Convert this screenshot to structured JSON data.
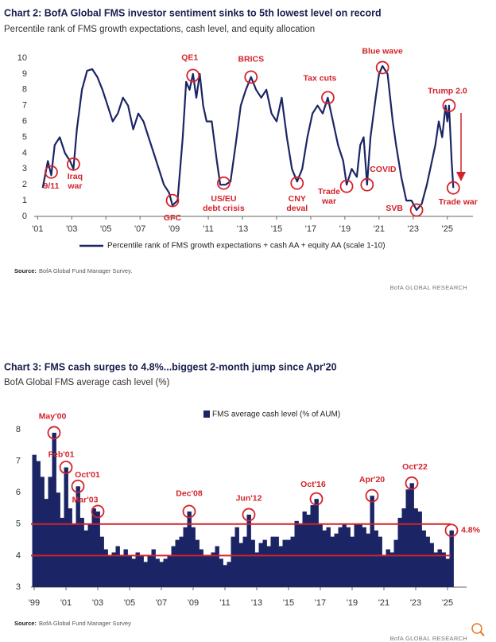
{
  "chart_data": [
    {
      "type": "line",
      "title": "Chart 2: BofA Global FMS investor sentiment sinks to 5th lowest level on record",
      "subtitle": "Percentile rank of FMS growth expectations, cash level, and equity allocation",
      "x": [
        2001.3,
        2001.6,
        2001.8,
        2002.0,
        2002.3,
        2002.6,
        2002.9,
        2003.1,
        2003.3,
        2003.6,
        2003.9,
        2004.2,
        2004.5,
        2004.8,
        2005.1,
        2005.4,
        2005.7,
        2006.0,
        2006.3,
        2006.6,
        2006.9,
        2007.2,
        2007.5,
        2007.8,
        2008.1,
        2008.4,
        2008.7,
        2008.9,
        2009.2,
        2009.5,
        2009.7,
        2009.9,
        2010.1,
        2010.3,
        2010.5,
        2010.7,
        2010.9,
        2011.2,
        2011.5,
        2011.7,
        2012.0,
        2012.3,
        2012.6,
        2012.9,
        2013.2,
        2013.5,
        2013.8,
        2014.1,
        2014.4,
        2014.7,
        2015.0,
        2015.3,
        2015.6,
        2015.9,
        2016.2,
        2016.5,
        2016.8,
        2017.1,
        2017.4,
        2017.7,
        2018.0,
        2018.3,
        2018.6,
        2018.9,
        2019.1,
        2019.4,
        2019.7,
        2019.9,
        2020.1,
        2020.3,
        2020.5,
        2020.8,
        2021.0,
        2021.2,
        2021.5,
        2021.8,
        2022.0,
        2022.3,
        2022.6,
        2022.9,
        2023.2,
        2023.5,
        2023.8,
        2024.0,
        2024.3,
        2024.5,
        2024.7,
        2024.9,
        2025.0,
        2025.1,
        2025.25,
        2025.35
      ],
      "series": [
        {
          "name": "Percentile rank of FMS growth expectations + cash AA + equity AA (scale 1-10)",
          "color": "#1b2566",
          "values": [
            1.8,
            3.5,
            2.6,
            4.5,
            5.0,
            4.0,
            3.5,
            3.0,
            5.5,
            8.0,
            9.2,
            9.3,
            8.8,
            8.0,
            7.0,
            6.0,
            6.5,
            7.5,
            7.0,
            5.5,
            6.5,
            6.0,
            5.0,
            4.0,
            3.0,
            2.0,
            1.5,
            0.7,
            1.0,
            5.0,
            8.5,
            8.0,
            9.0,
            7.5,
            9.0,
            7.0,
            6.0,
            6.0,
            3.5,
            2.0,
            2.0,
            2.2,
            4.5,
            7.0,
            8.0,
            8.8,
            8.0,
            7.5,
            8.0,
            6.5,
            6.0,
            7.5,
            5.0,
            3.0,
            2.2,
            3.0,
            5.0,
            6.5,
            7.0,
            6.5,
            7.5,
            6.0,
            4.5,
            3.5,
            2.0,
            3.0,
            2.5,
            4.5,
            5.0,
            2.0,
            5.0,
            7.5,
            9.0,
            9.5,
            9.0,
            6.0,
            4.5,
            2.5,
            1.0,
            1.0,
            0.4,
            0.8,
            2.0,
            3.0,
            4.5,
            6.0,
            5.0,
            7.0,
            6.0,
            7.0,
            3.5,
            1.8
          ]
        }
      ],
      "xlim": [
        2000.8,
        2026.5
      ],
      "xticks": [
        {
          "value": 2001,
          "label": "'01"
        },
        {
          "value": 2003,
          "label": "'03"
        },
        {
          "value": 2005,
          "label": "'05"
        },
        {
          "value": 2007,
          "label": "'07"
        },
        {
          "value": 2009,
          "label": "'09"
        },
        {
          "value": 2011,
          "label": "'11"
        },
        {
          "value": 2013,
          "label": "'13"
        },
        {
          "value": 2015,
          "label": "'15"
        },
        {
          "value": 2017,
          "label": "'17"
        },
        {
          "value": 2019,
          "label": "'19"
        },
        {
          "value": 2021,
          "label": "'21"
        },
        {
          "value": 2023,
          "label": "'23"
        },
        {
          "value": 2025,
          "label": "'25"
        }
      ],
      "ylim": [
        0,
        10
      ],
      "yticks": [
        0,
        1,
        2,
        3,
        4,
        5,
        6,
        7,
        8,
        9,
        10
      ],
      "annotation_color": "#d3232a",
      "annotations": [
        {
          "label": [
            "9/11"
          ],
          "x": 2001.8,
          "y": 2.8
        },
        {
          "label": [
            "Iraq",
            "war"
          ],
          "x": 2003.1,
          "y": 3.3
        },
        {
          "label": [
            "GFC"
          ],
          "x": 2008.9,
          "y": 1.0
        },
        {
          "label": [
            "QE1"
          ],
          "x": 2010.1,
          "y": 8.9
        },
        {
          "label": [
            "US/EU",
            "debt crisis"
          ],
          "x": 2011.9,
          "y": 2.1
        },
        {
          "label": [
            "BRICS"
          ],
          "x": 2013.5,
          "y": 8.8
        },
        {
          "label": [
            "CNY",
            "deval"
          ],
          "x": 2016.2,
          "y": 2.1
        },
        {
          "label": [
            "Tax cuts"
          ],
          "x": 2018.0,
          "y": 7.5
        },
        {
          "label": [
            "Trade",
            "war"
          ],
          "x": 2019.1,
          "y": 1.9
        },
        {
          "label": [
            "COVID"
          ],
          "x": 2020.3,
          "y": 2.0
        },
        {
          "label": [
            "Blue wave"
          ],
          "x": 2021.2,
          "y": 9.4
        },
        {
          "label": [
            "SVB"
          ],
          "x": 2023.2,
          "y": 0.4
        },
        {
          "label": [
            "Trump 2.0"
          ],
          "x": 2025.1,
          "y": 7.0
        },
        {
          "label": [
            "Trade war"
          ],
          "x": 2025.35,
          "y": 1.8
        }
      ],
      "source_label": "Source:",
      "source": "BofA Global Fund Manager Survey.",
      "brand": "BofA GLOBAL RESEARCH"
    },
    {
      "type": "bar",
      "title": "Chart 3: FMS cash surges to 4.8%...biggest 2-month jump since Apr'20",
      "subtitle": "BofA Global FMS average cash level (%)",
      "x": [
        1999.0,
        1999.25,
        1999.5,
        1999.75,
        2000.0,
        2000.25,
        2000.5,
        2000.75,
        2001.0,
        2001.25,
        2001.5,
        2001.75,
        2002.0,
        2002.25,
        2002.5,
        2002.75,
        2003.0,
        2003.25,
        2003.5,
        2003.75,
        2004.0,
        2004.25,
        2004.5,
        2004.75,
        2005.0,
        2005.25,
        2005.5,
        2005.75,
        2006.0,
        2006.25,
        2006.5,
        2006.75,
        2007.0,
        2007.25,
        2007.5,
        2007.75,
        2008.0,
        2008.25,
        2008.5,
        2008.75,
        2009.0,
        2009.25,
        2009.5,
        2009.75,
        2010.0,
        2010.25,
        2010.5,
        2010.75,
        2011.0,
        2011.25,
        2011.5,
        2011.75,
        2012.0,
        2012.25,
        2012.5,
        2012.75,
        2013.0,
        2013.25,
        2013.5,
        2013.75,
        2014.0,
        2014.25,
        2014.5,
        2014.75,
        2015.0,
        2015.25,
        2015.5,
        2015.75,
        2016.0,
        2016.25,
        2016.5,
        2016.75,
        2017.0,
        2017.25,
        2017.5,
        2017.75,
        2018.0,
        2018.25,
        2018.5,
        2018.75,
        2019.0,
        2019.25,
        2019.5,
        2019.75,
        2020.0,
        2020.25,
        2020.5,
        2020.75,
        2021.0,
        2021.25,
        2021.5,
        2021.75,
        2022.0,
        2022.25,
        2022.5,
        2022.75,
        2023.0,
        2023.25,
        2023.5,
        2023.75,
        2024.0,
        2024.25,
        2024.5,
        2024.75,
        2025.0,
        2025.25
      ],
      "series": [
        {
          "name": "FMS average cash level (% of AUM)",
          "color": "#1b2566",
          "values": [
            7.2,
            7.0,
            6.5,
            5.8,
            6.5,
            7.9,
            6.0,
            5.2,
            6.8,
            5.5,
            5.0,
            6.2,
            5.2,
            4.8,
            5.0,
            5.5,
            5.4,
            4.6,
            4.2,
            4.0,
            4.1,
            4.3,
            4.0,
            4.2,
            4.0,
            3.9,
            4.1,
            4.0,
            3.8,
            4.0,
            4.2,
            3.9,
            3.8,
            3.9,
            4.0,
            4.3,
            4.5,
            4.6,
            4.9,
            5.4,
            4.9,
            4.5,
            4.2,
            4.0,
            4.0,
            4.1,
            4.3,
            3.9,
            3.7,
            3.8,
            4.6,
            4.9,
            4.4,
            4.6,
            5.3,
            4.5,
            4.1,
            4.4,
            4.5,
            4.3,
            4.6,
            4.6,
            4.3,
            4.5,
            4.5,
            4.6,
            5.1,
            5.0,
            5.4,
            5.3,
            5.6,
            5.8,
            5.0,
            4.8,
            4.9,
            4.6,
            4.7,
            4.9,
            5.0,
            4.9,
            4.6,
            5.0,
            5.0,
            4.9,
            4.7,
            5.9,
            4.8,
            4.6,
            4.0,
            4.2,
            4.1,
            4.5,
            5.2,
            5.5,
            6.1,
            6.3,
            5.5,
            5.4,
            4.8,
            4.6,
            4.4,
            4.1,
            4.2,
            4.1,
            3.9,
            4.8
          ]
        }
      ],
      "xlim": [
        1998.8,
        2026.2
      ],
      "xticks": [
        {
          "value": 1999,
          "label": "'99"
        },
        {
          "value": 2001,
          "label": "'01"
        },
        {
          "value": 2003,
          "label": "'03"
        },
        {
          "value": 2005,
          "label": "'05"
        },
        {
          "value": 2007,
          "label": "'07"
        },
        {
          "value": 2009,
          "label": "'09"
        },
        {
          "value": 2011,
          "label": "'11"
        },
        {
          "value": 2013,
          "label": "'13"
        },
        {
          "value": 2015,
          "label": "'15"
        },
        {
          "value": 2017,
          "label": "'17"
        },
        {
          "value": 2019,
          "label": "'19"
        },
        {
          "value": 2021,
          "label": "'21"
        },
        {
          "value": 2023,
          "label": "'23"
        },
        {
          "value": 2025,
          "label": "'25"
        }
      ],
      "ylim": [
        3,
        8
      ],
      "yticks": [
        3,
        4,
        5,
        6,
        7,
        8
      ],
      "hlines": [
        5,
        4
      ],
      "annotation_color": "#d3232a",
      "annotations": [
        {
          "label": [
            "May'00"
          ],
          "x": 2000.25,
          "y": 7.9
        },
        {
          "label": [
            "Feb'01"
          ],
          "x": 2001.0,
          "y": 6.8
        },
        {
          "label": [
            "Oct'01"
          ],
          "x": 2001.75,
          "y": 6.2
        },
        {
          "label": [
            "Mar'03"
          ],
          "x": 2003.0,
          "y": 5.4
        },
        {
          "label": [
            "Dec'08"
          ],
          "x": 2008.75,
          "y": 5.4
        },
        {
          "label": [
            "Jun'12"
          ],
          "x": 2012.5,
          "y": 5.3
        },
        {
          "label": [
            "Oct'16"
          ],
          "x": 2016.75,
          "y": 5.8
        },
        {
          "label": [
            "Apr'20"
          ],
          "x": 2020.25,
          "y": 5.9
        },
        {
          "label": [
            "Oct'22"
          ],
          "x": 2022.75,
          "y": 6.3
        },
        {
          "label": [
            "4.8%"
          ],
          "x": 2025.25,
          "y": 4.8
        }
      ],
      "source_label": "Source:",
      "source": "BofA Global Fund Manager Survey",
      "brand": "BofA GLOBAL RESEARCH"
    }
  ]
}
